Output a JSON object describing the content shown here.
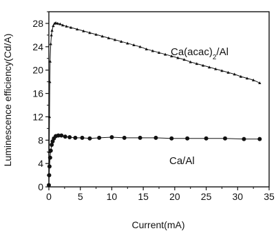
{
  "chart_data": {
    "type": "scatter",
    "xlabel": "Current(mA)",
    "ylabel": "Luminescence efficiency(Cd/A)",
    "xlim": [
      0,
      35
    ],
    "ylim": [
      0,
      30
    ],
    "xticks": [
      0,
      5,
      10,
      15,
      20,
      25,
      30,
      35
    ],
    "yticks": [
      0,
      4,
      8,
      12,
      16,
      20,
      24,
      28
    ],
    "grid": false,
    "series": [
      {
        "name": "Ca(acac)2/Al",
        "label_main": "Ca(acac)",
        "label_sub": "2",
        "label_tail": "/Al",
        "marker": "triangle",
        "x": [
          0.0,
          0.05,
          0.1,
          0.15,
          0.2,
          0.3,
          0.4,
          0.5,
          0.7,
          0.9,
          1.1,
          1.4,
          1.8,
          2.2,
          2.8,
          3.5,
          4.5,
          5.5,
          6.5,
          7.5,
          8.5,
          9.5,
          10.5,
          11.5,
          12.5,
          13.5,
          14.5,
          15.5,
          16.5,
          17.5,
          18.5,
          19.5,
          20.5,
          21.5,
          22.5,
          23.5,
          24.5,
          25.5,
          26.5,
          27.5,
          28.5,
          29.5,
          30.5,
          31.5,
          32.5,
          33.5
        ],
        "y": [
          0.3,
          6.0,
          12.0,
          18.0,
          21.5,
          24.5,
          26.0,
          26.8,
          27.6,
          28.0,
          28.1,
          28.0,
          27.9,
          27.7,
          27.5,
          27.3,
          27.0,
          26.7,
          26.4,
          26.1,
          25.8,
          25.5,
          25.2,
          24.9,
          24.6,
          24.3,
          24.0,
          23.6,
          23.3,
          23.0,
          22.7,
          22.4,
          22.1,
          21.8,
          21.4,
          21.1,
          20.8,
          20.5,
          20.2,
          19.9,
          19.6,
          19.3,
          18.9,
          18.6,
          18.3,
          17.8
        ]
      },
      {
        "name": "Ca/Al",
        "marker": "circle",
        "x": [
          0.0,
          0.05,
          0.1,
          0.2,
          0.3,
          0.45,
          0.6,
          0.8,
          1.1,
          1.5,
          2.0,
          2.6,
          3.3,
          4.2,
          5.3,
          6.5,
          8.0,
          10.0,
          12.0,
          14.5,
          17.0,
          19.5,
          22.0,
          25.0,
          28.0,
          31.0,
          33.5
        ],
        "y": [
          0.3,
          2.0,
          3.5,
          5.0,
          6.2,
          7.2,
          7.8,
          8.3,
          8.7,
          8.8,
          8.8,
          8.6,
          8.5,
          8.4,
          8.4,
          8.3,
          8.4,
          8.5,
          8.4,
          8.4,
          8.4,
          8.3,
          8.3,
          8.3,
          8.3,
          8.2,
          8.2
        ]
      }
    ]
  }
}
